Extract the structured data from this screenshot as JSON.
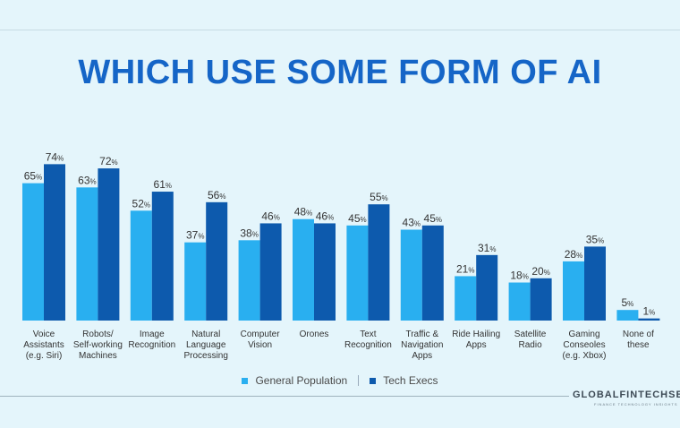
{
  "title": "WHICH USE SOME FORM OF AI",
  "legend": {
    "general": "General Population",
    "tech": "Tech Execs"
  },
  "brand": {
    "name": "GLOBALFINTECHSERIES",
    "tagline": "FINANCE TECHNOLOGY INSIGHTS"
  },
  "colors": {
    "general": "#29aff0",
    "tech": "#0d5aad",
    "background": "#e4f5fb"
  },
  "chart_data": {
    "type": "bar",
    "title": "WHICH USE SOME FORM OF AI",
    "unit": "%",
    "ylim": [
      0,
      100
    ],
    "grid": false,
    "legend_position": "bottom",
    "categories": [
      [
        "Voice",
        "Assistants",
        "(e.g. Siri)"
      ],
      [
        "Robots/",
        "Self-working",
        "Machines"
      ],
      [
        "Image",
        "Recognition"
      ],
      [
        "Natural",
        "Language",
        "Processing"
      ],
      [
        "Computer",
        "Vision"
      ],
      [
        "Orones"
      ],
      [
        "Text",
        "Recognition"
      ],
      [
        "Traffic &",
        "Navigation",
        "Apps"
      ],
      [
        "Ride Hailing",
        "Apps"
      ],
      [
        "Satellite",
        "Radio"
      ],
      [
        "Gaming",
        "Conseoles",
        "(e.g. Xbox)"
      ],
      [
        "None of",
        "these"
      ]
    ],
    "series": [
      {
        "name": "General Population",
        "values": [
          65,
          63,
          52,
          37,
          38,
          48,
          45,
          43,
          21,
          18,
          28,
          5
        ]
      },
      {
        "name": "Tech Execs",
        "values": [
          74,
          72,
          61,
          56,
          46,
          46,
          55,
          45,
          31,
          20,
          35,
          1
        ]
      }
    ]
  }
}
